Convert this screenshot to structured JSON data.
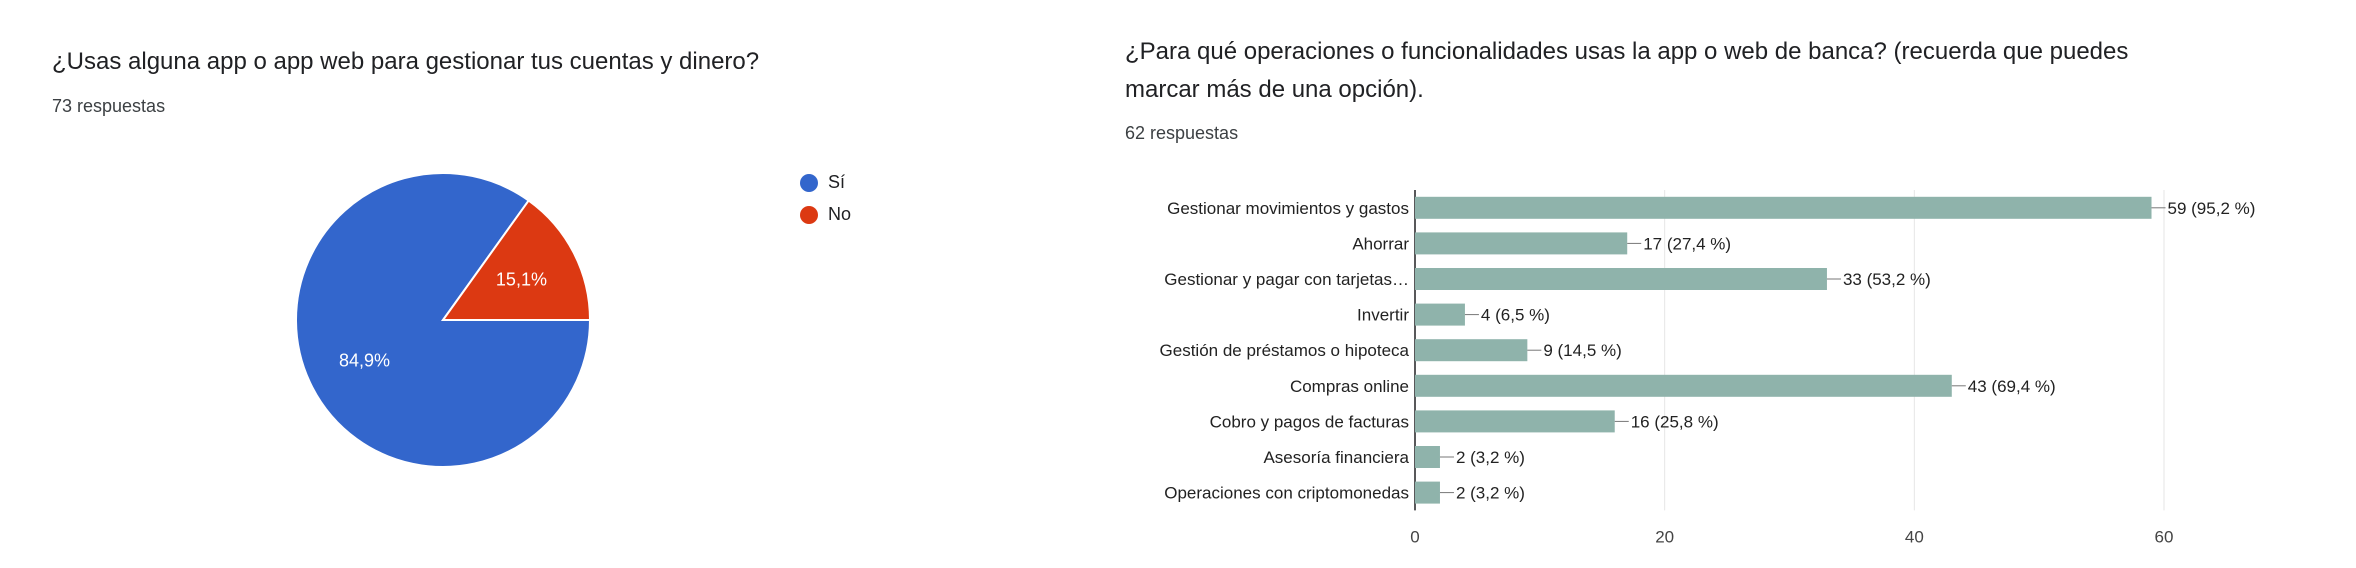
{
  "colors": {
    "si": "#3366cc",
    "no": "#dc3912",
    "bar": "#8fb3ab",
    "grid": "#e6e6e6",
    "axis": "#202124"
  },
  "left": {
    "question": "¿Usas alguna app o app web para gestionar tus cuentas y dinero?",
    "responses": "73 respuestas"
  },
  "right": {
    "question_line1": "¿Para qué operaciones o funcionalidades usas la app o web de banca? (recuerda que puedes",
    "question_line2": "marcar más de una opción).",
    "responses": "62 respuestas"
  },
  "chart_data": [
    {
      "type": "pie",
      "categories": [
        "Sí",
        "No"
      ],
      "values": [
        84.9,
        15.1
      ],
      "labels": [
        "84,9%",
        "15,1%"
      ],
      "legend_position": "right"
    },
    {
      "type": "bar",
      "orientation": "horizontal",
      "categories": [
        "Gestionar movimientos y gastos",
        "Ahorrar",
        "Gestionar y pagar con tarjetas…",
        "Invertir",
        "Gestión de préstamos o hipoteca",
        "Compras online",
        "Cobro y pagos de facturas",
        "Asesoría financiera",
        "Operaciones con criptomonedas"
      ],
      "values": [
        59,
        17,
        33,
        4,
        9,
        43,
        16,
        2,
        2
      ],
      "labels": [
        "59 (95,2 %)",
        "17 (27,4 %)",
        "33 (53,2 %)",
        "4 (6,5 %)",
        "9 (14,5 %)",
        "43 (69,4 %)",
        "16 (25,8 %)",
        "2 (3,2 %)",
        "2 (3,2 %)"
      ],
      "xlim": [
        0,
        60
      ],
      "xticks": [
        "0",
        "20",
        "40",
        "60"
      ],
      "grid": true
    }
  ]
}
